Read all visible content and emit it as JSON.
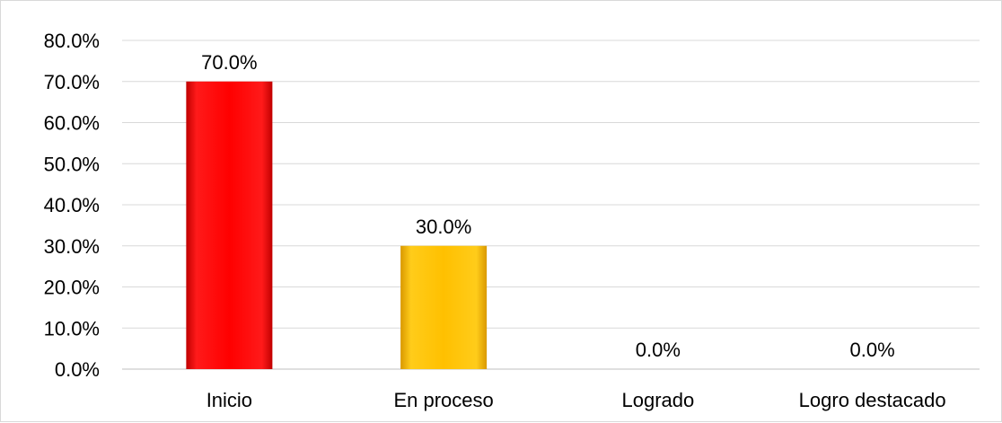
{
  "chart_data": {
    "type": "bar",
    "categories": [
      "Inicio",
      "En proceso",
      "Logrado",
      "Logro destacado"
    ],
    "values": [
      70.0,
      30.0,
      0.0,
      0.0
    ],
    "data_labels": [
      "70.0%",
      "30.0%",
      "0.0%",
      "0.0%"
    ],
    "bar_colors": [
      "#ff0000",
      "#ffc000",
      "#70ad47",
      "#4472c4"
    ],
    "ylim": [
      0,
      80
    ],
    "yticks": [
      0,
      10,
      20,
      30,
      40,
      50,
      60,
      70,
      80
    ],
    "ytick_labels": [
      "0.0%",
      "10.0%",
      "20.0%",
      "30.0%",
      "40.0%",
      "50.0%",
      "60.0%",
      "70.0%",
      "80.0%"
    ],
    "grid": true,
    "legend": "none",
    "title": "",
    "xlabel": "",
    "ylabel": ""
  }
}
